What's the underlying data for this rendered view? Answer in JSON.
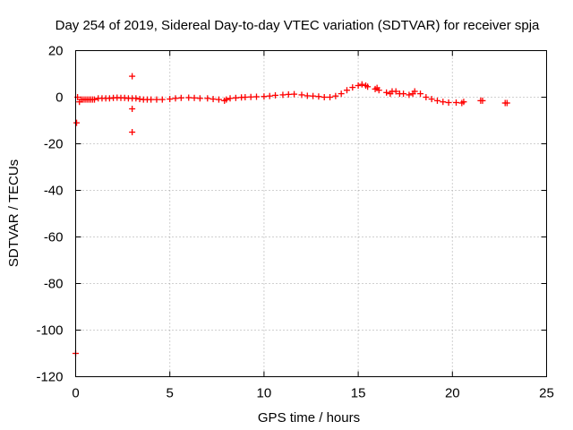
{
  "chart_data": {
    "type": "scatter",
    "title": "Day 254 of 2019, Sidereal Day-to-day VTEC variation (SDTVAR) for receiver spja",
    "xlabel": "GPS time / hours",
    "ylabel": "SDTVAR / TECUs",
    "xlim": [
      0,
      25
    ],
    "ylim": [
      -120,
      20
    ],
    "xticks": [
      0,
      5,
      10,
      15,
      20,
      25
    ],
    "yticks": [
      -120,
      -100,
      -80,
      -60,
      -40,
      -20,
      0,
      20
    ],
    "xtick_labels": [
      "0",
      "5",
      "10",
      "15",
      "20",
      "25"
    ],
    "ytick_labels": [
      "-120",
      "-100",
      "-80",
      "-60",
      "-40",
      "-20",
      "0",
      "20"
    ],
    "grid": true,
    "marker": "+",
    "color": "#ff0000",
    "series": [
      {
        "name": "SDTVAR",
        "x": [
          0.0,
          0.05,
          0.1,
          0.2,
          0.3,
          0.4,
          0.5,
          0.6,
          0.7,
          0.8,
          0.9,
          1.0,
          1.2,
          1.4,
          1.6,
          1.8,
          2.0,
          2.2,
          2.4,
          2.6,
          2.8,
          3.0,
          3.0,
          3.0,
          3.0,
          3.2,
          3.4,
          3.6,
          3.8,
          4.0,
          4.3,
          4.6,
          5.0,
          5.3,
          5.6,
          6.0,
          6.3,
          6.6,
          7.0,
          7.3,
          7.6,
          7.9,
          8.0,
          8.2,
          8.5,
          8.8,
          9.0,
          9.3,
          9.6,
          10.0,
          10.3,
          10.6,
          11.0,
          11.3,
          11.6,
          12.0,
          12.3,
          12.6,
          12.9,
          13.2,
          13.5,
          13.8,
          14.1,
          14.4,
          14.7,
          15.0,
          15.2,
          15.4,
          15.5,
          15.9,
          16.0,
          16.1,
          16.5,
          16.7,
          16.8,
          17.0,
          17.2,
          17.4,
          17.7,
          17.9,
          18.0,
          18.3,
          18.6,
          18.9,
          19.2,
          19.5,
          19.8,
          20.2,
          20.5,
          20.6,
          21.5,
          21.6,
          22.8,
          22.9
        ],
        "y": [
          -110,
          -11,
          0,
          -2,
          -1,
          -1,
          -1,
          -1,
          -1,
          -1,
          -1,
          -1,
          -0.5,
          -0.5,
          -0.5,
          -0.5,
          -0.3,
          -0.2,
          -0.3,
          -0.3,
          -0.5,
          9,
          -5,
          -15,
          -0.5,
          -0.5,
          -0.8,
          -1,
          -1,
          -1,
          -1,
          -1,
          -0.8,
          -0.5,
          -0.3,
          -0.2,
          -0.3,
          -0.5,
          -0.5,
          -0.8,
          -1,
          -1.5,
          -1,
          -0.5,
          -0.3,
          -0.1,
          0,
          0.1,
          0.2,
          0.3,
          0.5,
          0.8,
          1,
          1.2,
          1.3,
          1.0,
          0.6,
          0.5,
          0.3,
          0,
          0,
          0.5,
          1.5,
          3,
          4.2,
          5,
          5.5,
          5,
          4.5,
          3.5,
          4,
          3,
          2,
          1.5,
          2.5,
          2.5,
          1.5,
          1.5,
          1,
          1.5,
          2.5,
          1.5,
          0,
          -0.8,
          -1.5,
          -2,
          -2.3,
          -2.3,
          -2.5,
          -2,
          -1.5,
          -1.5,
          -2.5,
          -2.5
        ]
      }
    ]
  }
}
